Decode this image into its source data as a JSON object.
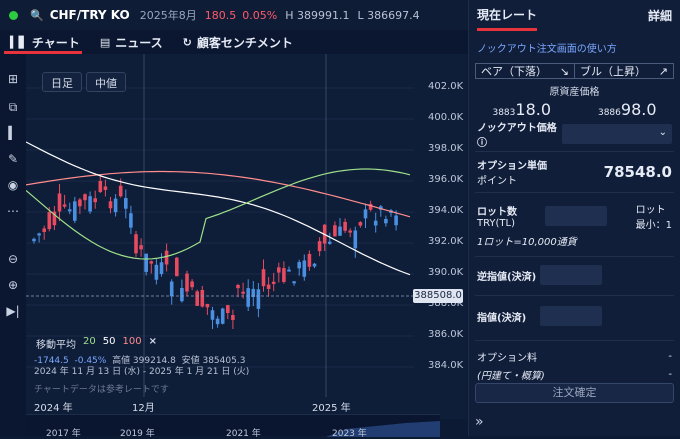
{
  "topbar": {
    "symbol": "CHF/TRY KO",
    "month": "2025年8月",
    "change": "180.5",
    "pct": "0.05%",
    "high": "H 389991.1",
    "low": "L 386697.4"
  },
  "tabs": [
    {
      "label": "チャート"
    },
    {
      "label": "ニュース"
    },
    {
      "label": "顧客センチメント"
    }
  ],
  "chart": {
    "btn_daily": "日足",
    "btn_mid": "中値",
    "yticks": [
      "402.0K",
      "400.0K",
      "398.0K",
      "396.0K",
      "394.0K",
      "392.0K",
      "390.0K",
      "388.0K",
      "386.0K",
      "384.0K"
    ],
    "price_tag": "388508.0",
    "ma_label": "移動平均",
    "ma_values": [
      "20",
      "50",
      "100"
    ],
    "ma_close": "×",
    "ma_colors": [
      "#9fe08a",
      "#ffffff",
      "#ff8d8d"
    ],
    "stat_change": "-1744.5",
    "stat_pct": "-0.45%",
    "stat_high": "高値 399214.8",
    "stat_low": "安値 385405.3",
    "range": "2024 年 11 月 13 日 (水) - 2025 年 1 月 21 日 (火)",
    "note": "チャートデータは参考レートです",
    "xticks": [
      "2024 年",
      "12月",
      "2025 年"
    ],
    "mini_years": [
      "2017 年",
      "2019 年",
      "2021 年",
      "2023 年"
    ]
  },
  "chart_data": {
    "type": "candlestick",
    "ylim": [
      384000,
      402000
    ]
  },
  "right": {
    "tab_current": "現在レート",
    "tab_detail": "詳細",
    "guide_link": "ノックアウト注文画面の使い方",
    "bear": "ベア（下落）",
    "bull": "ブル（上昇）",
    "underlying": "原資産価格",
    "bid_small": "3883",
    "bid_big": "18.0",
    "ask_small": "3886",
    "ask_big": "98.0",
    "ko_label": "ノックアウト価格",
    "unit_label": "オプション単価",
    "unit_sub": "ポイント",
    "unit_value": "78548.0",
    "lot_label": "ロット数",
    "lot_sub": "TRY(TL)",
    "lot_min_a": "ロット",
    "lot_min_b": "最小：1",
    "lot_note": "1ロット=10,000通貨",
    "stop_label": "逆指値(決済)",
    "limit_label": "指値(決済)",
    "fee_label": "オプション料",
    "fee_sub": "(円建て・概算)",
    "fee_val": "-",
    "fee_val2": "-",
    "confirm": "注文確定"
  }
}
